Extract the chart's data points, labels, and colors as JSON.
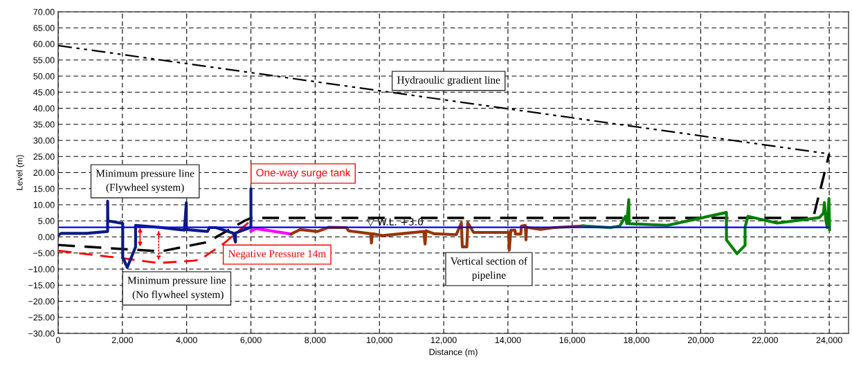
{
  "chart_data": {
    "type": "line",
    "xlabel": "Distance (m)",
    "ylabel": "Level (m)",
    "xlim": [
      0,
      24600
    ],
    "ylim": [
      -30,
      70
    ],
    "xticks": [
      0,
      {
        "value": 2000,
        "label": "2,000"
      },
      {
        "value": 4000,
        "label": "4,000"
      },
      {
        "value": 6000,
        "label": "6,000"
      },
      {
        "value": 8000,
        "label": "8,000"
      },
      {
        "value": 10000,
        "label": "10,000"
      },
      {
        "value": 12000,
        "label": "12,000"
      },
      {
        "value": 14000,
        "label": "14,000"
      },
      {
        "value": 16000,
        "label": "16,000"
      },
      {
        "value": 18000,
        "label": "18,000"
      },
      {
        "value": 20000,
        "label": "20,000"
      },
      {
        "value": 22000,
        "label": "22,000"
      },
      {
        "value": 24000,
        "label": "24,000"
      }
    ],
    "yticks": [
      {
        "value": -30,
        "label": "−30.00"
      },
      {
        "value": -25,
        "label": "−25.00"
      },
      {
        "value": -20,
        "label": "−20.00"
      },
      {
        "value": -15,
        "label": "−15.00"
      },
      {
        "value": -10,
        "label": "−10.00"
      },
      {
        "value": -5,
        "label": "−5.00"
      },
      {
        "value": 0,
        "label": "0.00"
      },
      {
        "value": 5,
        "label": "5.00"
      },
      {
        "value": 10,
        "label": "10.00"
      },
      {
        "value": 15,
        "label": "15.00"
      },
      {
        "value": 20,
        "label": "20.00"
      },
      {
        "value": 25,
        "label": "25.00"
      },
      {
        "value": 30,
        "label": "30.00"
      },
      {
        "value": 35,
        "label": "35.00"
      },
      {
        "value": 40,
        "label": "40.00"
      },
      {
        "value": 45,
        "label": "45.00"
      },
      {
        "value": 50,
        "label": "50.00"
      },
      {
        "value": 55,
        "label": "55.00"
      },
      {
        "value": 60,
        "label": "60.00"
      },
      {
        "value": 65,
        "label": "65.00"
      },
      {
        "value": 70,
        "label": "70.00"
      }
    ],
    "grid": true,
    "marker": "none",
    "series": [
      {
        "color": "#000000",
        "line_style": "dashdotdot",
        "x": [
          0,
          24000
        ],
        "values": [
          59.5,
          25.8
        ]
      },
      {
        "color": "#0000ff",
        "line_style": "solid",
        "x": [
          0,
          24000
        ],
        "values": [
          3.0,
          3.0
        ]
      },
      {
        "color": "#000000",
        "line_style": "dashed",
        "x": [
          0,
          3200,
          4650,
          5800,
          6000,
          23500,
          24000
        ],
        "values": [
          -2.5,
          -4.5,
          -1.6,
          5.0,
          5.9,
          5.9,
          25.8
        ]
      },
      {
        "color": "#ff0000",
        "line_style": "dashed",
        "x": [
          0,
          1970,
          3130,
          4220,
          4430,
          5160,
          6000
        ],
        "values": [
          -4.3,
          -6.6,
          -8.1,
          -7.4,
          -7.0,
          -2.0,
          5.1
        ]
      },
      {
        "color": "#0d1a80",
        "line_style": "solid",
        "x": [
          0,
          90,
          880,
          1540,
          1540,
          1550,
          2010,
          2010,
          2150,
          2410,
          2410,
          3130,
          3930,
          3990,
          3990,
          4650,
          4710,
          4910,
          5450,
          5520,
          5520,
          6000,
          6000,
          6000
        ],
        "values": [
          0.5,
          1.1,
          1.1,
          1.7,
          11.1,
          5.0,
          4.2,
          -6.3,
          -9.5,
          -3.1,
          3.6,
          3.0,
          2.1,
          10.6,
          2.3,
          1.7,
          2.9,
          2.9,
          1.2,
          -1.6,
          1.2,
          3.0,
          15.0,
          3.0
        ]
      },
      {
        "color": "#ff00ff",
        "line_style": "solid",
        "x": [
          6000,
          6150,
          7250
        ],
        "values": [
          1.8,
          2.6,
          0.9
        ]
      },
      {
        "color": "#993300",
        "line_style": "solid",
        "x": [
          7250,
          7530,
          8070,
          8430,
          8970,
          9040,
          9730,
          9750,
          9780,
          10090,
          11380,
          11420,
          11450,
          11700,
          12390,
          12550,
          12580,
          12720,
          12750,
          12930,
          14020,
          14040,
          14090,
          14220,
          14230,
          14400,
          14420,
          14540,
          14560,
          14580,
          15010,
          15440,
          16330
        ],
        "values": [
          0.9,
          2.3,
          1.7,
          3.0,
          2.9,
          1.9,
          1.0,
          -1.9,
          1.0,
          0.4,
          1.7,
          -2.2,
          1.9,
          1.0,
          0.7,
          4.4,
          -3.1,
          -3.1,
          4.4,
          1.4,
          1.4,
          -4.1,
          2.1,
          2.1,
          0.9,
          0.9,
          3.4,
          3.6,
          -0.9,
          3.0,
          2.3,
          2.9,
          3.4
        ]
      },
      {
        "color": "#008000",
        "line_style": "solid",
        "x": [
          16330,
          17190,
          17480,
          17660,
          17700,
          17760,
          17770,
          18960,
          20800,
          20800,
          21130,
          21380,
          21380,
          21470,
          22380,
          23690,
          23820,
          23850,
          23890,
          23940,
          23990,
          24010
        ],
        "values": [
          3.4,
          2.9,
          3.4,
          6.4,
          4.1,
          11.6,
          4.1,
          3.6,
          7.6,
          -0.9,
          -5.2,
          -2.6,
          3.1,
          6.4,
          4.3,
          6.0,
          7.4,
          10.7,
          5.5,
          2.9,
          11.9,
          2.3
        ]
      }
    ],
    "annotations": [
      "Hydraoulic gradient line",
      "Minimum pressure line\n(Flywheel system)",
      "Minimum pressure line\n (No flywheel system)",
      "One-way surge tank",
      "Negative Pressure 14m",
      "Vertical section of\npipeline",
      {
        "text": "▽ W.L. +3.0",
        "x": 10490,
        "y": 3.0
      }
    ]
  }
}
